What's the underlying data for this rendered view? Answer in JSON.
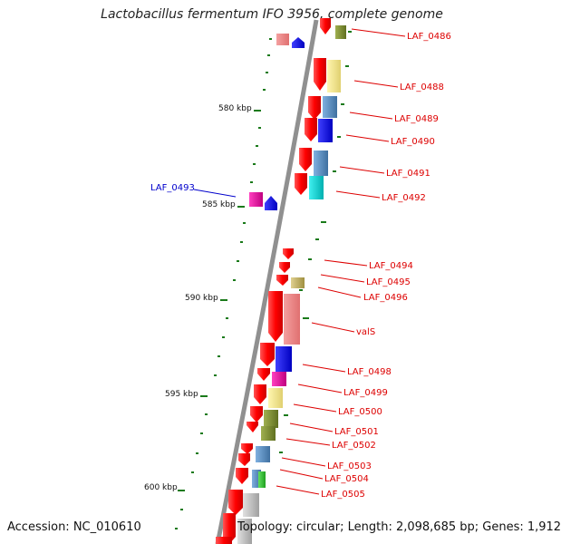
{
  "title": "Lactobacillus fermentum IFO 3956, complete genome",
  "accession": "Accession: NC_010610",
  "summary": "Topology: circular; Length: 2,098,685 bp; Genes: 1,912",
  "scale_labels": [
    "580 kbp",
    "585 kbp",
    "590 kbp",
    "595 kbp",
    "600 kbp"
  ],
  "gene_labels": [
    "LAF_0486",
    "LAF_0488",
    "LAF_0489",
    "LAF_0490",
    "LAF_0491",
    "LAF_0492",
    "LAF_0493",
    "LAF_0494",
    "LAF_0495",
    "LAF_0496",
    "valS",
    "LAF_0498",
    "LAF_0499",
    "LAF_0500",
    "LAF_0501",
    "LAF_0502",
    "LAF_0503",
    "LAF_0504",
    "LAF_0505"
  ],
  "colors": {
    "backbone": "#888888",
    "label_red": "#dd0000",
    "label_blue": "#0000cc",
    "tick_green": "#1a7a1a"
  }
}
